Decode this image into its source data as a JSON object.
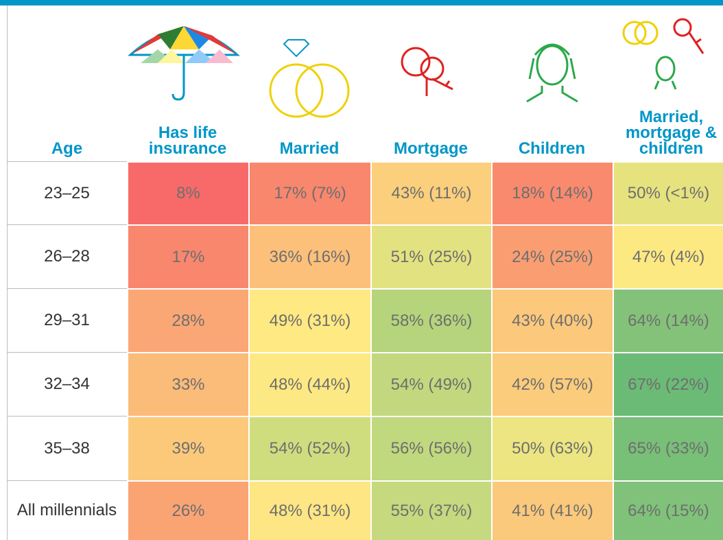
{
  "header": {
    "columns": [
      "Age",
      "Has life insurance",
      "Married",
      "Mortgage",
      "Children",
      "Married, mortgage & children"
    ]
  },
  "rows": [
    {
      "label": "23–25",
      "cells": [
        "8%",
        "17% (7%)",
        "43% (11%)",
        "18% (14%)",
        "50% (<1%)"
      ],
      "colors": [
        "#f86a6a",
        "#f8876e",
        "#fbcf7c",
        "#f98a6e",
        "#e6e37f"
      ]
    },
    {
      "label": "26–28",
      "cells": [
        "17%",
        "36% (16%)",
        "51% (25%)",
        "24% (25%)",
        "47% (4%)"
      ],
      "colors": [
        "#f8876e",
        "#fcc07a",
        "#e3e280",
        "#fa9e72",
        "#fde982"
      ]
    },
    {
      "label": "29–31",
      "cells": [
        "28%",
        "49% (31%)",
        "58% (36%)",
        "43% (40%)",
        "64% (14%)"
      ],
      "colors": [
        "#faa775",
        "#fee982",
        "#b5d47c",
        "#fcc87b",
        "#84c27a"
      ]
    },
    {
      "label": "32–34",
      "cells": [
        "33%",
        "48% (44%)",
        "54% (49%)",
        "42% (57%)",
        "67% (22%)"
      ],
      "colors": [
        "#fbbb79",
        "#fde983",
        "#c3d87e",
        "#fbcc7c",
        "#6bbb77"
      ]
    },
    {
      "label": "35–38",
      "cells": [
        "39%",
        "54% (52%)",
        "56% (56%)",
        "50% (63%)",
        "65% (33%)"
      ],
      "colors": [
        "#fcc97b",
        "#d0dd7f",
        "#c0d87e",
        "#ece581",
        "#78bf78"
      ]
    },
    {
      "label": "All millennials",
      "cells": [
        "26%",
        "48% (31%)",
        "55% (37%)",
        "41% (41%)",
        "64% (15%)"
      ],
      "colors": [
        "#faa474",
        "#fde683",
        "#c6d97e",
        "#fbc97b",
        "#80c27a"
      ]
    }
  ]
}
